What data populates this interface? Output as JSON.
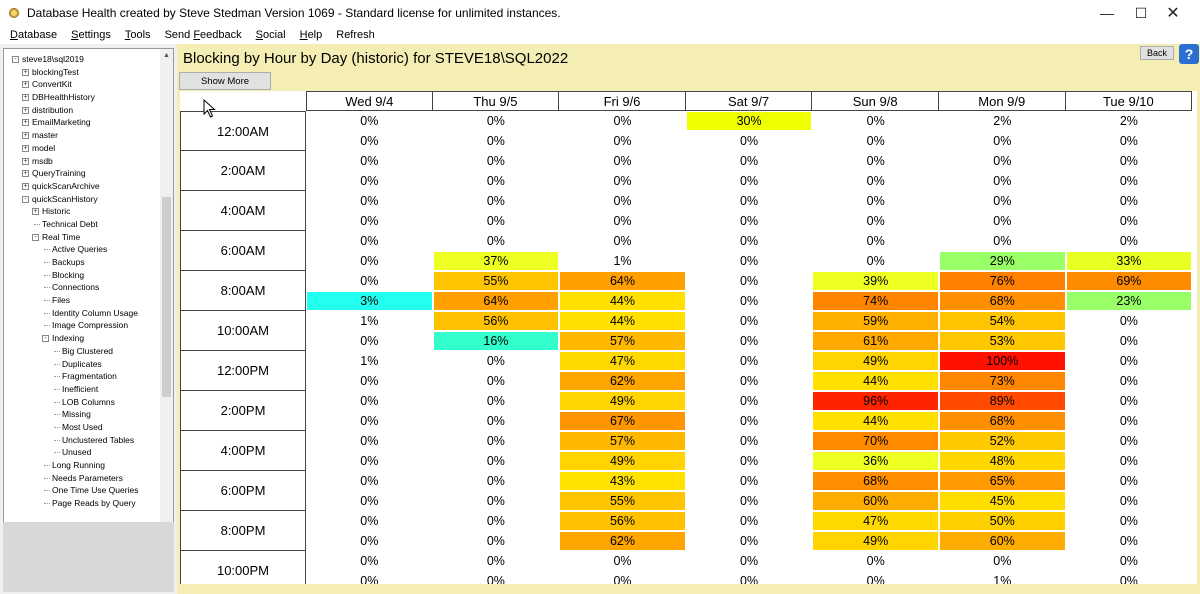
{
  "window": {
    "title": "Database Health created by Steve Stedman Version 1069 - Standard license for unlimited instances."
  },
  "menu": [
    {
      "label": "Database",
      "ul": "D"
    },
    {
      "label": "Settings",
      "ul": "S"
    },
    {
      "label": "Tools",
      "ul": "T"
    },
    {
      "label": "Send Feedback",
      "ul": "F"
    },
    {
      "label": "Social",
      "ul": "S"
    },
    {
      "label": "Help",
      "ul": "H"
    },
    {
      "label": "Refresh",
      "ul": ""
    }
  ],
  "tree": [
    {
      "label": "steve18\\sql2019",
      "indent": 0,
      "box": "-"
    },
    {
      "label": "blockingTest",
      "indent": 1,
      "box": "+"
    },
    {
      "label": "ConvertKit",
      "indent": 1,
      "box": "+"
    },
    {
      "label": "DBHealthHistory",
      "indent": 1,
      "box": "+"
    },
    {
      "label": "distribution",
      "indent": 1,
      "box": "+"
    },
    {
      "label": "EmailMarketing",
      "indent": 1,
      "box": "+"
    },
    {
      "label": "master",
      "indent": 1,
      "box": "+"
    },
    {
      "label": "model",
      "indent": 1,
      "box": "+"
    },
    {
      "label": "msdb",
      "indent": 1,
      "box": "+"
    },
    {
      "label": "QueryTraining",
      "indent": 1,
      "box": "+"
    },
    {
      "label": "quickScanArchive",
      "indent": 1,
      "box": "+"
    },
    {
      "label": "quickScanHistory",
      "indent": 1,
      "box": "-"
    },
    {
      "label": "Historic",
      "indent": 2,
      "box": "+"
    },
    {
      "label": "Technical Debt",
      "indent": 2,
      "box": ""
    },
    {
      "label": "Real Time",
      "indent": 2,
      "box": "-"
    },
    {
      "label": "Active Queries",
      "indent": 3,
      "box": ""
    },
    {
      "label": "Backups",
      "indent": 3,
      "box": ""
    },
    {
      "label": "Blocking",
      "indent": 3,
      "box": ""
    },
    {
      "label": "Connections",
      "indent": 3,
      "box": ""
    },
    {
      "label": "Files",
      "indent": 3,
      "box": ""
    },
    {
      "label": "Identity Column Usage",
      "indent": 3,
      "box": ""
    },
    {
      "label": "Image Compression",
      "indent": 3,
      "box": ""
    },
    {
      "label": "Indexing",
      "indent": 3,
      "box": "-"
    },
    {
      "label": "Big Clustered",
      "indent": 4,
      "box": ""
    },
    {
      "label": "Duplicates",
      "indent": 4,
      "box": ""
    },
    {
      "label": "Fragmentation",
      "indent": 4,
      "box": ""
    },
    {
      "label": "Inefficient",
      "indent": 4,
      "box": ""
    },
    {
      "label": "LOB Columns",
      "indent": 4,
      "box": ""
    },
    {
      "label": "Missing",
      "indent": 4,
      "box": ""
    },
    {
      "label": "Most Used",
      "indent": 4,
      "box": ""
    },
    {
      "label": "Unclustered Tables",
      "indent": 4,
      "box": ""
    },
    {
      "label": "Unused",
      "indent": 4,
      "box": ""
    },
    {
      "label": "Long Running",
      "indent": 3,
      "box": ""
    },
    {
      "label": "Needs Parameters",
      "indent": 3,
      "box": ""
    },
    {
      "label": "One Time Use Queries",
      "indent": 3,
      "box": ""
    },
    {
      "label": "Page Reads by Query",
      "indent": 3,
      "box": ""
    }
  ],
  "report": {
    "title": "Blocking by Hour by Day (historic) for STEVE18\\SQL2022",
    "show_more_label": "Show More",
    "back_label": "Back",
    "help_label": "?"
  },
  "days": [
    "Wed 9/4",
    "Thu 9/5",
    "Fri 9/6",
    "Sat 9/7",
    "Sun 9/8",
    "Mon 9/9",
    "Tue 9/10"
  ],
  "time_labels": [
    "12:00AM",
    "2:00AM",
    "4:00AM",
    "6:00AM",
    "8:00AM",
    "10:00AM",
    "12:00PM",
    "2:00PM",
    "4:00PM",
    "6:00PM",
    "8:00PM",
    "10:00PM"
  ],
  "grid": [
    [
      {
        "t": "0%"
      },
      {
        "t": "0%"
      },
      {
        "t": "0%"
      },
      {
        "t": "30%",
        "c": "#f0ff00"
      },
      {
        "t": "0%"
      },
      {
        "t": "2%"
      },
      {
        "t": "2%"
      }
    ],
    [
      {
        "t": "0%"
      },
      {
        "t": "0%"
      },
      {
        "t": "0%"
      },
      {
        "t": "0%"
      },
      {
        "t": "0%"
      },
      {
        "t": "0%"
      },
      {
        "t": "0%"
      }
    ],
    [
      {
        "t": "0%"
      },
      {
        "t": "0%"
      },
      {
        "t": "0%"
      },
      {
        "t": "0%"
      },
      {
        "t": "0%"
      },
      {
        "t": "0%"
      },
      {
        "t": "0%"
      }
    ],
    [
      {
        "t": "0%"
      },
      {
        "t": "0%"
      },
      {
        "t": "0%"
      },
      {
        "t": "0%"
      },
      {
        "t": "0%"
      },
      {
        "t": "0%"
      },
      {
        "t": "0%"
      }
    ],
    [
      {
        "t": "0%"
      },
      {
        "t": "0%"
      },
      {
        "t": "0%"
      },
      {
        "t": "0%"
      },
      {
        "t": "0%"
      },
      {
        "t": "0%"
      },
      {
        "t": "0%"
      }
    ],
    [
      {
        "t": "0%"
      },
      {
        "t": "0%"
      },
      {
        "t": "0%"
      },
      {
        "t": "0%"
      },
      {
        "t": "0%"
      },
      {
        "t": "0%"
      },
      {
        "t": "0%"
      }
    ],
    [
      {
        "t": "0%"
      },
      {
        "t": "0%"
      },
      {
        "t": "0%"
      },
      {
        "t": "0%"
      },
      {
        "t": "0%"
      },
      {
        "t": "0%"
      },
      {
        "t": "0%"
      }
    ],
    [
      {
        "t": "0%"
      },
      {
        "t": "37%",
        "c": "#eeff22"
      },
      {
        "t": "1%"
      },
      {
        "t": "0%"
      },
      {
        "t": "0%"
      },
      {
        "t": "29%",
        "c": "#99ff66"
      },
      {
        "t": "33%",
        "c": "#e8ff22"
      }
    ],
    [
      {
        "t": "0%"
      },
      {
        "t": "55%",
        "c": "#ffc400"
      },
      {
        "t": "64%",
        "c": "#ff9f00"
      },
      {
        "t": "0%"
      },
      {
        "t": "39%",
        "c": "#eeff22"
      },
      {
        "t": "76%",
        "c": "#ff7f00"
      },
      {
        "t": "69%",
        "c": "#ff8c00"
      }
    ],
    [
      {
        "t": "3%",
        "c": "#22ffee"
      },
      {
        "t": "64%",
        "c": "#ff9f00"
      },
      {
        "t": "44%",
        "c": "#ffe000"
      },
      {
        "t": "0%"
      },
      {
        "t": "74%",
        "c": "#ff8400"
      },
      {
        "t": "68%",
        "c": "#ff8f00"
      },
      {
        "t": "23%",
        "c": "#99ff66"
      }
    ],
    [
      {
        "t": "1%"
      },
      {
        "t": "56%",
        "c": "#ffc100"
      },
      {
        "t": "44%",
        "c": "#ffe000"
      },
      {
        "t": "0%"
      },
      {
        "t": "59%",
        "c": "#ffb000"
      },
      {
        "t": "54%",
        "c": "#ffc400"
      },
      {
        "t": "0%"
      }
    ],
    [
      {
        "t": "0%"
      },
      {
        "t": "16%",
        "c": "#33ffcc"
      },
      {
        "t": "57%",
        "c": "#ffb800"
      },
      {
        "t": "0%"
      },
      {
        "t": "61%",
        "c": "#ffa800"
      },
      {
        "t": "53%",
        "c": "#ffc700"
      },
      {
        "t": "0%"
      }
    ],
    [
      {
        "t": "1%"
      },
      {
        "t": "0%"
      },
      {
        "t": "47%",
        "c": "#ffd800"
      },
      {
        "t": "0%"
      },
      {
        "t": "49%",
        "c": "#ffd400"
      },
      {
        "t": "100%",
        "c": "#ff1000"
      },
      {
        "t": "0%"
      }
    ],
    [
      {
        "t": "0%"
      },
      {
        "t": "0%"
      },
      {
        "t": "62%",
        "c": "#ffa500"
      },
      {
        "t": "0%"
      },
      {
        "t": "44%",
        "c": "#ffe000"
      },
      {
        "t": "73%",
        "c": "#ff8600"
      },
      {
        "t": "0%"
      }
    ],
    [
      {
        "t": "0%"
      },
      {
        "t": "0%"
      },
      {
        "t": "49%",
        "c": "#ffd400"
      },
      {
        "t": "0%"
      },
      {
        "t": "96%",
        "c": "#ff2400"
      },
      {
        "t": "89%",
        "c": "#ff4a00"
      },
      {
        "t": "0%"
      }
    ],
    [
      {
        "t": "0%"
      },
      {
        "t": "0%"
      },
      {
        "t": "67%",
        "c": "#ff9500"
      },
      {
        "t": "0%"
      },
      {
        "t": "44%",
        "c": "#ffe000"
      },
      {
        "t": "68%",
        "c": "#ff8f00"
      },
      {
        "t": "0%"
      }
    ],
    [
      {
        "t": "0%"
      },
      {
        "t": "0%"
      },
      {
        "t": "57%",
        "c": "#ffb800"
      },
      {
        "t": "0%"
      },
      {
        "t": "70%",
        "c": "#ff8a00"
      },
      {
        "t": "52%",
        "c": "#ffc900"
      },
      {
        "t": "0%"
      }
    ],
    [
      {
        "t": "0%"
      },
      {
        "t": "0%"
      },
      {
        "t": "49%",
        "c": "#ffd400"
      },
      {
        "t": "0%"
      },
      {
        "t": "36%",
        "c": "#eeff22"
      },
      {
        "t": "48%",
        "c": "#ffd600"
      },
      {
        "t": "0%"
      }
    ],
    [
      {
        "t": "0%"
      },
      {
        "t": "0%"
      },
      {
        "t": "43%",
        "c": "#ffe200"
      },
      {
        "t": "0%"
      },
      {
        "t": "68%",
        "c": "#ff8f00"
      },
      {
        "t": "65%",
        "c": "#ff9a00"
      },
      {
        "t": "0%"
      }
    ],
    [
      {
        "t": "0%"
      },
      {
        "t": "0%"
      },
      {
        "t": "55%",
        "c": "#ffc400"
      },
      {
        "t": "0%"
      },
      {
        "t": "60%",
        "c": "#ffac00"
      },
      {
        "t": "45%",
        "c": "#ffdd00"
      },
      {
        "t": "0%"
      }
    ],
    [
      {
        "t": "0%"
      },
      {
        "t": "0%"
      },
      {
        "t": "56%",
        "c": "#ffc100"
      },
      {
        "t": "0%"
      },
      {
        "t": "47%",
        "c": "#ffd800"
      },
      {
        "t": "50%",
        "c": "#ffd000"
      },
      {
        "t": "0%"
      }
    ],
    [
      {
        "t": "0%"
      },
      {
        "t": "0%"
      },
      {
        "t": "62%",
        "c": "#ffa500"
      },
      {
        "t": "0%"
      },
      {
        "t": "49%",
        "c": "#ffd400"
      },
      {
        "t": "60%",
        "c": "#ffac00"
      },
      {
        "t": "0%"
      }
    ],
    [
      {
        "t": "0%"
      },
      {
        "t": "0%"
      },
      {
        "t": "0%"
      },
      {
        "t": "0%"
      },
      {
        "t": "0%"
      },
      {
        "t": "0%"
      },
      {
        "t": "0%"
      }
    ],
    [
      {
        "t": "0%"
      },
      {
        "t": "0%"
      },
      {
        "t": "0%"
      },
      {
        "t": "0%"
      },
      {
        "t": "0%"
      },
      {
        "t": "1%"
      },
      {
        "t": "0%"
      }
    ]
  ]
}
